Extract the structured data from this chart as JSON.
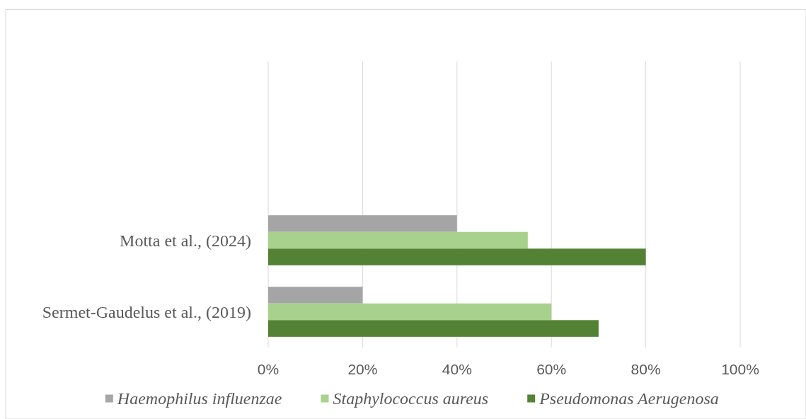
{
  "chart_data": {
    "type": "bar",
    "orientation": "horizontal",
    "categories": [
      null,
      null,
      "Motta et al., (2024)",
      "Sermet-Gaudelus et al., (2019)"
    ],
    "series": [
      {
        "name": "Haemophilus influenzae",
        "color": "#a5a5a5",
        "values": [
          null,
          null,
          40,
          20
        ]
      },
      {
        "name": "Staphylococcus aureus",
        "color": "#a9d18e",
        "values": [
          null,
          null,
          55,
          60
        ]
      },
      {
        "name": "Pseudomonas Aerugenosa",
        "color": "#548235",
        "values": [
          null,
          null,
          80,
          70
        ]
      }
    ],
    "xlim": [
      0,
      100
    ],
    "xticks": [
      {
        "value": 0,
        "label": "0%"
      },
      {
        "value": 20,
        "label": "20%"
      },
      {
        "value": 40,
        "label": "40%"
      },
      {
        "value": 60,
        "label": "60%"
      },
      {
        "value": 80,
        "label": "80%"
      },
      {
        "value": 100,
        "label": "100%"
      }
    ],
    "grid": "x",
    "legend": "bottom"
  }
}
